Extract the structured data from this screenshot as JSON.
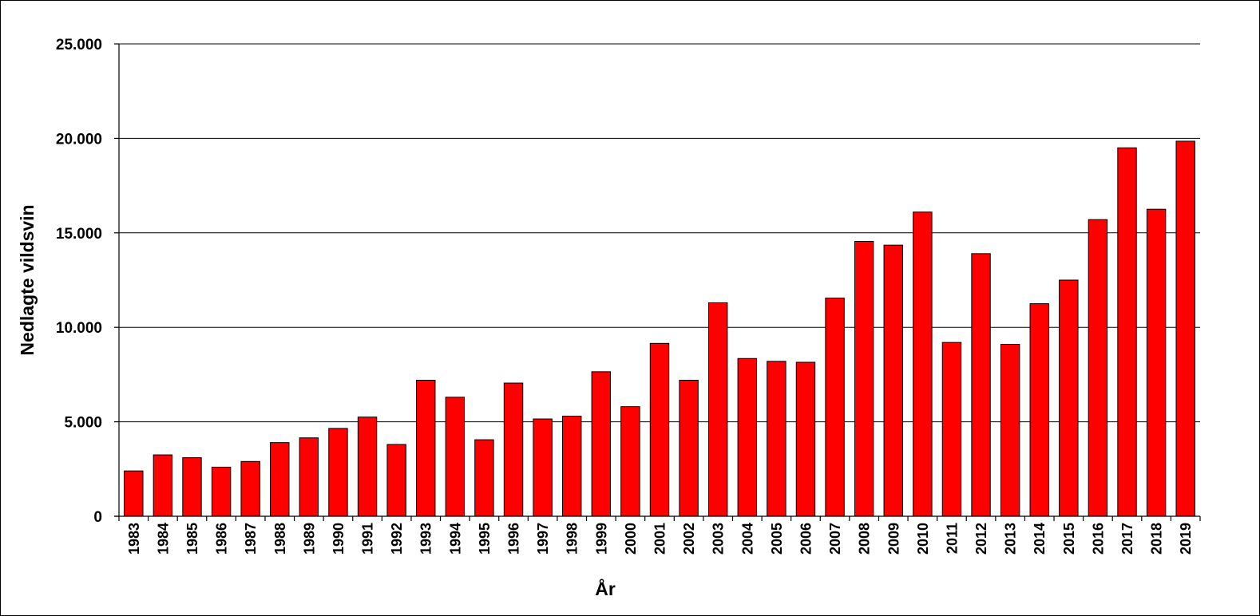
{
  "chart_data": {
    "type": "bar",
    "title": "",
    "xlabel": "År",
    "ylabel": "Nedlagte vildsvin",
    "ylim": [
      0,
      25000
    ],
    "yticks": [
      0,
      5000,
      10000,
      15000,
      20000,
      25000
    ],
    "ytick_labels": [
      "0",
      "5.000",
      "10.000",
      "15.000",
      "20.000",
      "25.000"
    ],
    "grid": "horizontal",
    "bar_color": "#ff0000",
    "categories": [
      "1983",
      "1984",
      "1985",
      "1986",
      "1987",
      "1988",
      "1989",
      "1990",
      "1991",
      "1992",
      "1993",
      "1994",
      "1995",
      "1996",
      "1997",
      "1998",
      "1999",
      "2000",
      "2001",
      "2002",
      "2003",
      "2004",
      "2005",
      "2006",
      "2007",
      "2008",
      "2009",
      "2010",
      "2011",
      "2012",
      "2013",
      "2014",
      "2015",
      "2016",
      "2017",
      "2018",
      "2019"
    ],
    "values": [
      2400,
      3250,
      3100,
      2600,
      2900,
      3900,
      4150,
      4650,
      5250,
      3800,
      7200,
      6300,
      4050,
      7050,
      5150,
      5300,
      7650,
      5800,
      9150,
      7200,
      11300,
      8350,
      8200,
      8150,
      11550,
      14550,
      14350,
      16100,
      9200,
      13900,
      9100,
      11250,
      12500,
      15700,
      19500,
      16250,
      19850
    ]
  }
}
